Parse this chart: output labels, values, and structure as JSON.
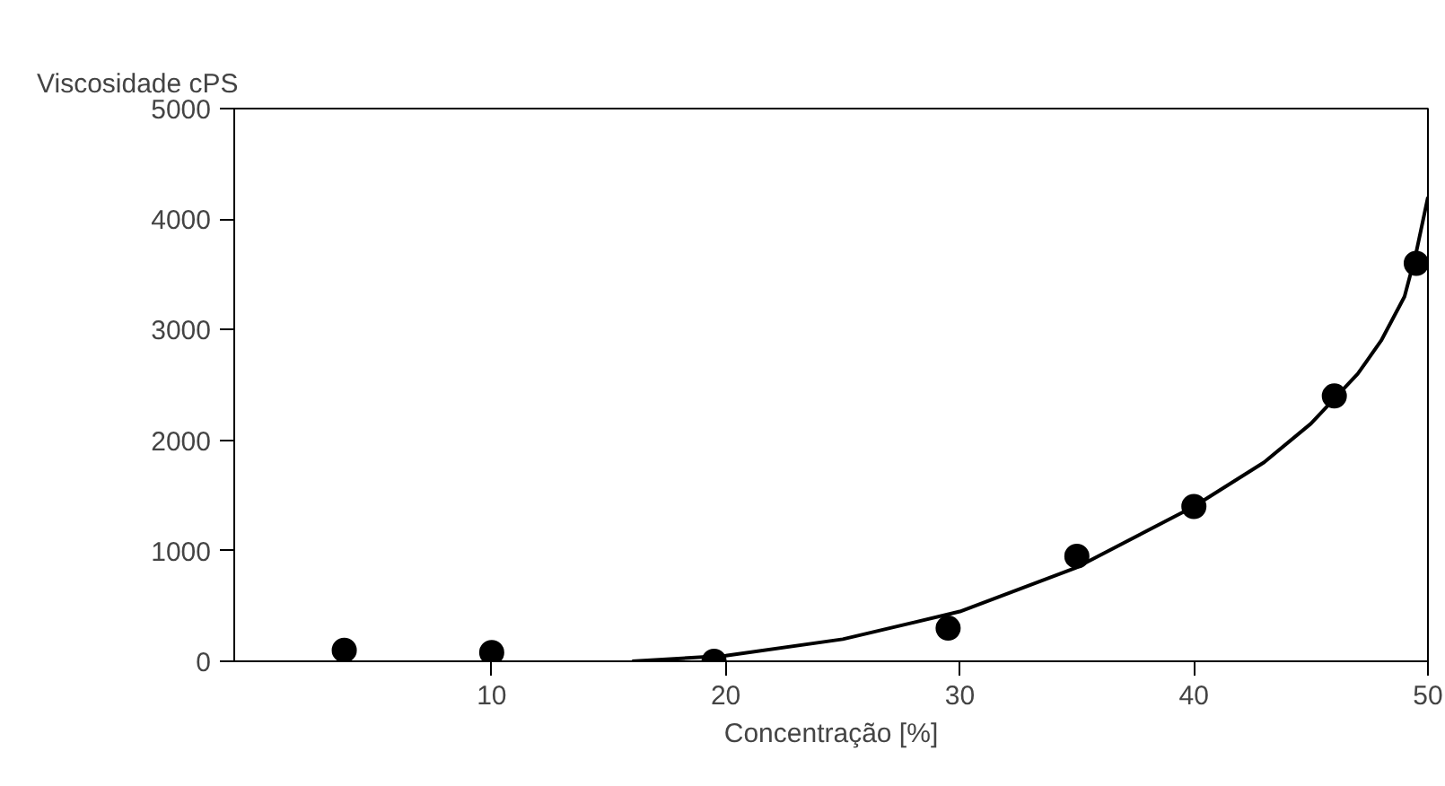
{
  "chart_data": {
    "type": "scatter",
    "xlabel": "Concentração [%]",
    "ylabel": "Viscosidade cPS",
    "xlim": [
      -1,
      50
    ],
    "ylim": [
      0,
      5000
    ],
    "xticks": [
      10,
      20,
      30,
      40,
      50
    ],
    "yticks": [
      0,
      1000,
      2000,
      3000,
      4000,
      5000
    ],
    "grid": false,
    "series": [
      {
        "marker": "circle",
        "color": "#000000",
        "x": [
          3.7,
          10,
          19.5,
          29.5,
          35,
          40,
          46,
          49.5
        ],
        "values": [
          100,
          80,
          0,
          300,
          950,
          1400,
          2400,
          3600
        ]
      },
      {
        "type": "line",
        "marker": "none",
        "color": "#000000",
        "x": [
          16,
          20,
          25,
          30,
          35,
          40,
          43,
          45,
          47,
          48,
          49,
          49.5,
          50
        ],
        "values": [
          0,
          50,
          200,
          450,
          850,
          1400,
          1800,
          2150,
          2600,
          2900,
          3300,
          3700,
          4200
        ]
      }
    ]
  }
}
